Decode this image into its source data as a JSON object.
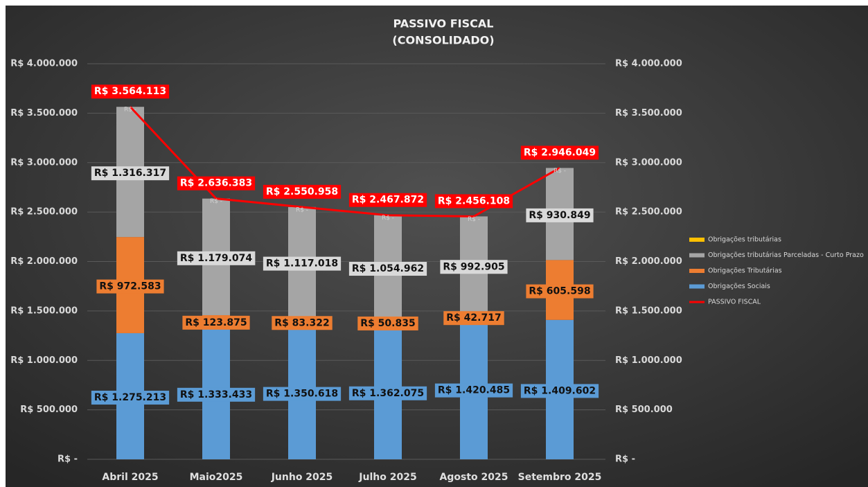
{
  "chart_data": {
    "type": "stacked-bar-line",
    "title": [
      "PASSIVO FISCAL",
      "(CONSOLIDADO)"
    ],
    "categories": [
      "Abril 2025",
      "Maio2025",
      "Junho 2025",
      "Julho 2025",
      "Agosto 2025",
      "Setembro 2025"
    ],
    "series": [
      {
        "name": "Obrigações tributárias",
        "color": "#ffc000",
        "type": "bar",
        "values": [
          0,
          0,
          0,
          0,
          0,
          0
        ],
        "value_labels": [
          "R$ -",
          "R$ -",
          "R$ -",
          "R$ -",
          "R$ -",
          "R$ -"
        ]
      },
      {
        "name": "Obrigações tributárias Parceladas - Curto Prazo",
        "color": "#a5a5a5",
        "type": "bar",
        "values": [
          1316317,
          1179074,
          1117018,
          1054962,
          992905,
          930849
        ],
        "value_labels": [
          "R$ 1.316.317",
          "R$ 1.179.074",
          "R$ 1.117.018",
          "R$ 1.054.962",
          "R$ 992.905",
          "R$ 930.849"
        ]
      },
      {
        "name": "Obrigações Tributárias",
        "color": "#ed7d31",
        "type": "bar",
        "values": [
          972583,
          123875,
          83322,
          50835,
          42717,
          605598
        ],
        "value_labels": [
          "R$ 972.583",
          "R$ 123.875",
          "R$ 83.322",
          "R$ 50.835",
          "R$ 42.717",
          "R$ 605.598"
        ]
      },
      {
        "name": "Obrigações Sociais",
        "color": "#5b9bd5",
        "type": "bar",
        "values": [
          1275213,
          1333433,
          1350618,
          1362075,
          1420485,
          1409602
        ],
        "value_labels": [
          "R$ 1.275.213",
          "R$ 1.333.433",
          "R$ 1.350.618",
          "R$ 1.362.075",
          "R$ 1.420.485",
          "R$ 1.409.602"
        ]
      },
      {
        "name": "PASSIVO FISCAL",
        "color": "#ff0000",
        "type": "line",
        "values": [
          3564113,
          2636383,
          2550958,
          2467872,
          2456108,
          2946049
        ],
        "value_labels": [
          "R$ 3.564.113",
          "R$ 2.636.383",
          "R$ 2.550.958",
          "R$ 2.467.872",
          "R$ 2.456.108",
          "R$ 2.946.049"
        ]
      }
    ],
    "ylim": [
      0,
      4000000
    ],
    "yticks": [
      {
        "value": 0,
        "label": "R$ -"
      },
      {
        "value": 500000,
        "label": "R$ 500.000"
      },
      {
        "value": 1000000,
        "label": "R$ 1.000.000"
      },
      {
        "value": 1500000,
        "label": "R$ 1.500.000"
      },
      {
        "value": 2000000,
        "label": "R$ 2.000.000"
      },
      {
        "value": 2500000,
        "label": "R$ 2.500.000"
      },
      {
        "value": 3000000,
        "label": "R$ 3.000.000"
      },
      {
        "value": 3500000,
        "label": "R$ 3.500.000"
      },
      {
        "value": 4000000,
        "label": "R$ 4.000.000"
      }
    ],
    "y2lim": [
      0,
      4000000
    ],
    "y2ticks": [
      {
        "value": 0,
        "label": "R$ -"
      },
      {
        "value": 500000,
        "label": "R$ 500.000"
      },
      {
        "value": 1000000,
        "label": "R$ 1.000.000"
      },
      {
        "value": 1500000,
        "label": "R$ 1.500.000"
      },
      {
        "value": 2000000,
        "label": "R$ 2.000.000"
      },
      {
        "value": 2500000,
        "label": "R$ 2.500.000"
      },
      {
        "value": 3000000,
        "label": "R$ 3.000.000"
      },
      {
        "value": 3500000,
        "label": "R$ 3.500.000"
      },
      {
        "value": 4000000,
        "label": "R$ 4.000.000"
      }
    ],
    "grid": true,
    "legend": "right"
  }
}
